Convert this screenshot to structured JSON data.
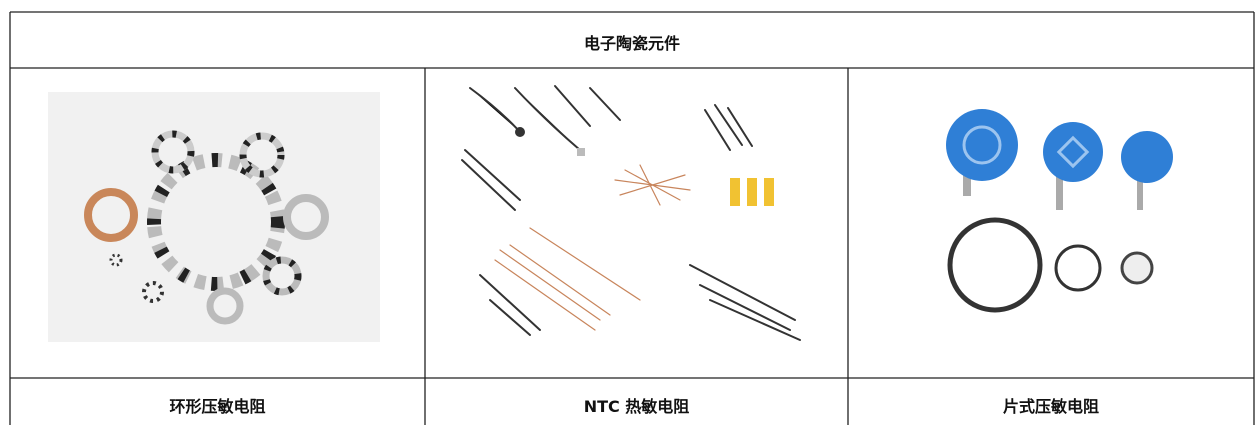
{
  "table": {
    "title": "电子陶瓷元件",
    "captions": [
      "环形压敏电阻",
      "NTC 热敏电阻",
      "片式压敏电阻"
    ]
  }
}
